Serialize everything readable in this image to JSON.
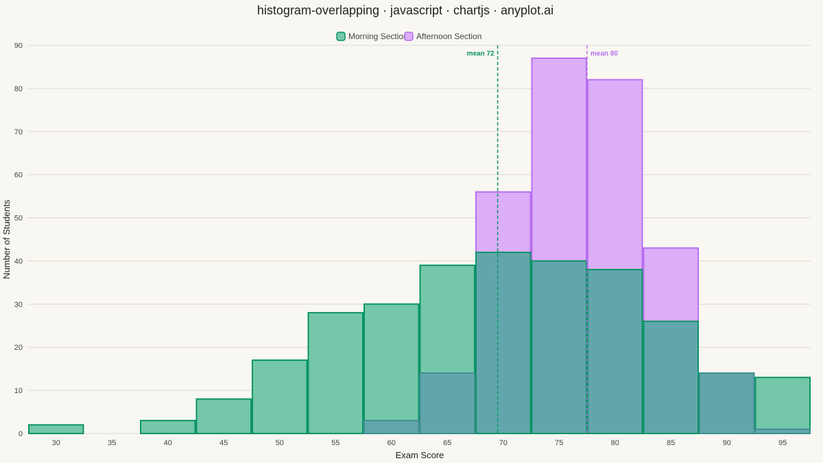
{
  "chart_data": {
    "type": "bar",
    "title": "histogram-overlapping · javascript · chartjs · anyplot.ai",
    "xlabel": "Exam Score",
    "ylabel": "Number of Students",
    "ylim": [
      0,
      90
    ],
    "yticks": [
      0,
      10,
      20,
      30,
      40,
      50,
      60,
      70,
      80,
      90
    ],
    "categories": [
      "30",
      "35",
      "40",
      "45",
      "50",
      "55",
      "60",
      "65",
      "70",
      "75",
      "80",
      "85",
      "90",
      "95"
    ],
    "series": [
      {
        "name": "Morning Section",
        "values": [
          2,
          0,
          3,
          8,
          17,
          28,
          30,
          39,
          42,
          40,
          38,
          26,
          14,
          13
        ],
        "fill": "#74c7a9",
        "stroke": "#0b9467"
      },
      {
        "name": "Afternoon Section",
        "values": [
          0,
          0,
          0,
          0,
          0,
          0,
          3,
          14,
          56,
          87,
          82,
          43,
          14,
          1
        ],
        "fill": "#dbaef7",
        "stroke": "#b86ef0"
      }
    ],
    "overlap_fill": "#62a6ac",
    "overlap_stroke": "#3f8f90",
    "means": [
      {
        "label": "mean 72",
        "x": 72,
        "color": "#0b9467"
      },
      {
        "label": "mean 80",
        "x": 80,
        "color": "#b86ef0"
      }
    ],
    "grid": true,
    "legend_position": "top-center"
  }
}
